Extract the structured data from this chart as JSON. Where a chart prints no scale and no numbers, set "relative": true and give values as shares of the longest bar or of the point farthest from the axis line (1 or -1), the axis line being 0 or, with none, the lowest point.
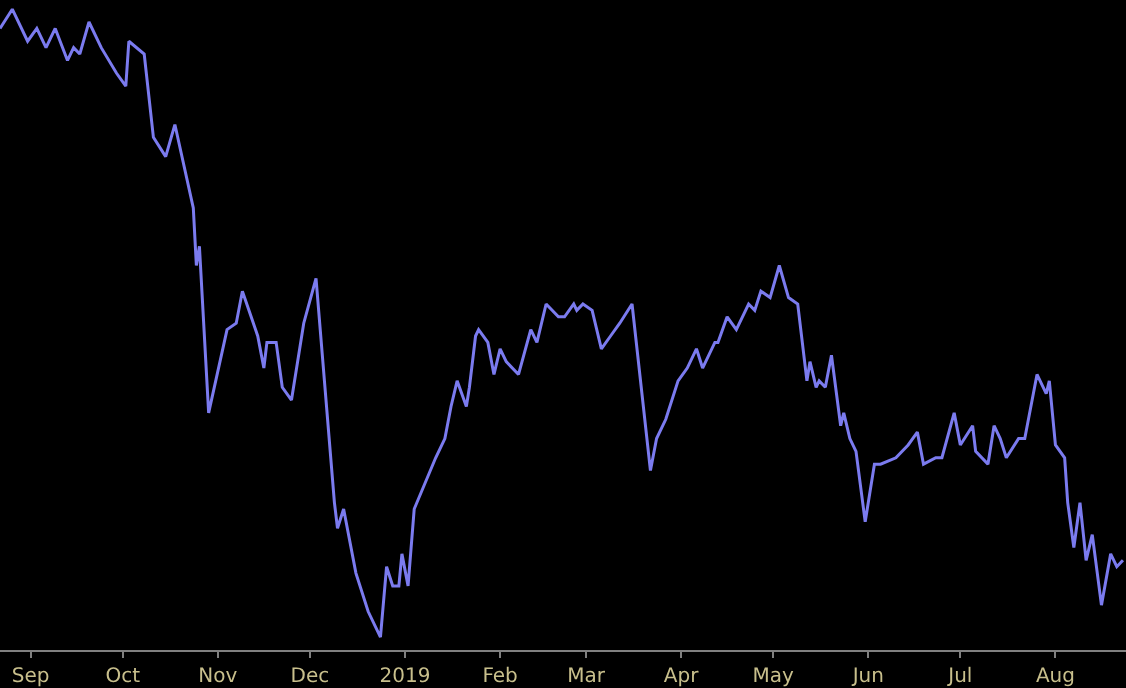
{
  "chart_data": {
    "type": "line",
    "relative": true,
    "grid": false,
    "marker": "none",
    "line_style": "solid",
    "xlim": [
      "2018-08-22",
      "2019-08-24"
    ],
    "xticks": [
      {
        "value": "2018-09-01",
        "label": "Sep"
      },
      {
        "value": "2018-10-01",
        "label": "Oct"
      },
      {
        "value": "2018-11-01",
        "label": "Nov"
      },
      {
        "value": "2018-12-01",
        "label": "Dec"
      },
      {
        "value": "2019-01-01",
        "label": "2019"
      },
      {
        "value": "2019-02-01",
        "label": "Feb"
      },
      {
        "value": "2019-03-01",
        "label": "Mar"
      },
      {
        "value": "2019-04-01",
        "label": "Apr"
      },
      {
        "value": "2019-05-01",
        "label": "May"
      },
      {
        "value": "2019-06-01",
        "label": "Jun"
      },
      {
        "value": "2019-07-01",
        "label": "Jul"
      },
      {
        "value": "2019-08-01",
        "label": "Aug"
      }
    ],
    "x": [
      "2018-08-22",
      "2018-08-26",
      "2018-08-31",
      "2018-09-03",
      "2018-09-06",
      "2018-09-09",
      "2018-09-13",
      "2018-09-15",
      "2018-09-17",
      "2018-09-20",
      "2018-09-24",
      "2018-09-29",
      "2018-10-02",
      "2018-10-03",
      "2018-10-08",
      "2018-10-11",
      "2018-10-15",
      "2018-10-18",
      "2018-10-24",
      "2018-10-25",
      "2018-10-26",
      "2018-10-29",
      "2018-11-04",
      "2018-11-07",
      "2018-11-09",
      "2018-11-14",
      "2018-11-16",
      "2018-11-17",
      "2018-11-20",
      "2018-11-22",
      "2018-11-25",
      "2018-11-27",
      "2018-11-29",
      "2018-12-03",
      "2018-12-09",
      "2018-12-10",
      "2018-12-12",
      "2018-12-16",
      "2018-12-20",
      "2018-12-24",
      "2018-12-26",
      "2018-12-28",
      "2018-12-30",
      "2018-12-31",
      "2019-01-02",
      "2019-01-04",
      "2019-01-11",
      "2019-01-14",
      "2019-01-16",
      "2019-01-18",
      "2019-01-21",
      "2019-01-22",
      "2019-01-24",
      "2019-01-25",
      "2019-01-28",
      "2019-01-30",
      "2019-02-01",
      "2019-02-03",
      "2019-02-07",
      "2019-02-11",
      "2019-02-13",
      "2019-02-16",
      "2019-02-20",
      "2019-02-22",
      "2019-02-25",
      "2019-02-26",
      "2019-02-28",
      "2019-03-03",
      "2019-03-06",
      "2019-03-09",
      "2019-03-12",
      "2019-03-16",
      "2019-03-22",
      "2019-03-24",
      "2019-03-27",
      "2019-03-31",
      "2019-04-03",
      "2019-04-06",
      "2019-04-08",
      "2019-04-12",
      "2019-04-13",
      "2019-04-16",
      "2019-04-19",
      "2019-04-23",
      "2019-04-25",
      "2019-04-27",
      "2019-04-30",
      "2019-05-03",
      "2019-05-06",
      "2019-05-09",
      "2019-05-12",
      "2019-05-13",
      "2019-05-15",
      "2019-05-16",
      "2019-05-18",
      "2019-05-20",
      "2019-05-23",
      "2019-05-24",
      "2019-05-26",
      "2019-05-28",
      "2019-05-31",
      "2019-06-03",
      "2019-06-05",
      "2019-06-10",
      "2019-06-14",
      "2019-06-17",
      "2019-06-19",
      "2019-06-23",
      "2019-06-25",
      "2019-06-29",
      "2019-07-01",
      "2019-07-05",
      "2019-07-06",
      "2019-07-10",
      "2019-07-12",
      "2019-07-14",
      "2019-07-16",
      "2019-07-20",
      "2019-07-22",
      "2019-07-24",
      "2019-07-26",
      "2019-07-29",
      "2019-07-30",
      "2019-08-01",
      "2019-08-04",
      "2019-08-05",
      "2019-08-07",
      "2019-08-09",
      "2019-08-11",
      "2019-08-13",
      "2019-08-16",
      "2019-08-19",
      "2019-08-21",
      "2019-08-23"
    ],
    "series": [
      {
        "color": "#7b7bef",
        "values": [
          0.97,
          1.0,
          0.95,
          0.97,
          0.94,
          0.97,
          0.92,
          0.94,
          0.93,
          0.98,
          0.94,
          0.9,
          0.88,
          0.95,
          0.93,
          0.8,
          0.77,
          0.82,
          0.69,
          0.6,
          0.63,
          0.37,
          0.5,
          0.51,
          0.56,
          0.49,
          0.44,
          0.48,
          0.48,
          0.41,
          0.39,
          0.45,
          0.51,
          0.58,
          0.23,
          0.19,
          0.22,
          0.12,
          0.06,
          0.02,
          0.13,
          0.1,
          0.1,
          0.15,
          0.1,
          0.22,
          0.3,
          0.33,
          0.38,
          0.42,
          0.38,
          0.41,
          0.49,
          0.5,
          0.48,
          0.43,
          0.47,
          0.45,
          0.43,
          0.5,
          0.48,
          0.54,
          0.52,
          0.52,
          0.54,
          0.53,
          0.54,
          0.53,
          0.47,
          0.49,
          0.51,
          0.54,
          0.28,
          0.33,
          0.36,
          0.42,
          0.44,
          0.47,
          0.44,
          0.48,
          0.48,
          0.52,
          0.5,
          0.54,
          0.53,
          0.56,
          0.55,
          0.6,
          0.55,
          0.54,
          0.42,
          0.45,
          0.41,
          0.42,
          0.41,
          0.46,
          0.35,
          0.37,
          0.33,
          0.31,
          0.2,
          0.29,
          0.29,
          0.3,
          0.32,
          0.34,
          0.29,
          0.3,
          0.3,
          0.37,
          0.32,
          0.35,
          0.31,
          0.29,
          0.35,
          0.33,
          0.3,
          0.33,
          0.33,
          0.38,
          0.43,
          0.4,
          0.42,
          0.32,
          0.3,
          0.23,
          0.16,
          0.23,
          0.14,
          0.18,
          0.07,
          0.15,
          0.13,
          0.14
        ]
      }
    ]
  }
}
